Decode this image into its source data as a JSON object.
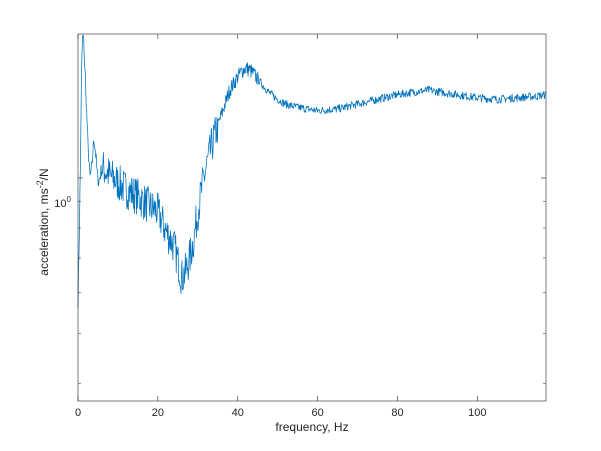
{
  "chart_data": {
    "type": "line",
    "xlabel": "frequency, Hz",
    "ylabel": "acceleration, ms^{-2}/N",
    "ylabel_parts": {
      "base": "acceleration, ms",
      "superscript": "-2",
      "suffix": "/N"
    },
    "xlim": [
      0,
      117.2
    ],
    "ylim": [
      0.37,
      1.9
    ],
    "yscale": "log",
    "grid": false,
    "x_ticks": [
      0,
      20,
      40,
      60,
      80,
      100
    ],
    "x_tick_labels": [
      "0",
      "20",
      "40",
      "60",
      "80",
      "100"
    ],
    "y_ticks": [
      1
    ],
    "y_tick_labels": [
      "10^0"
    ],
    "y_tick_label_parts": [
      {
        "base": "10",
        "exponent": "0"
      }
    ],
    "series_color": "#0072bd",
    "series": [
      {
        "x": [
          0,
          0.3,
          0.6,
          0.9,
          1.2,
          1.5,
          1.8,
          2.1,
          2.5,
          3.0,
          3.5,
          4.0,
          4.4,
          4.8,
          5.2,
          6,
          7,
          8,
          10,
          12,
          15,
          18,
          20,
          22,
          24,
          25,
          26,
          27,
          28,
          29,
          30,
          32,
          34,
          36,
          38,
          40,
          41,
          42,
          43,
          44,
          46,
          48,
          50,
          52,
          55,
          60,
          65,
          70,
          75,
          80,
          85,
          88,
          90,
          95,
          100,
          105,
          110,
          115,
          117.2
        ],
        "y": [
          0.58,
          0.75,
          1.05,
          1.6,
          1.95,
          1.78,
          1.58,
          1.38,
          1.15,
          1.0,
          1.05,
          1.2,
          1.12,
          1.02,
          0.98,
          1.05,
          1.03,
          1.01,
          0.98,
          0.95,
          0.92,
          0.88,
          0.86,
          0.79,
          0.74,
          0.69,
          0.64,
          0.66,
          0.7,
          0.76,
          0.86,
          1.04,
          1.19,
          1.33,
          1.48,
          1.57,
          1.61,
          1.63,
          1.62,
          1.59,
          1.52,
          1.46,
          1.42,
          1.39,
          1.37,
          1.35,
          1.36,
          1.39,
          1.42,
          1.45,
          1.47,
          1.48,
          1.47,
          1.45,
          1.43,
          1.42,
          1.43,
          1.44,
          1.45
        ]
      }
    ]
  }
}
